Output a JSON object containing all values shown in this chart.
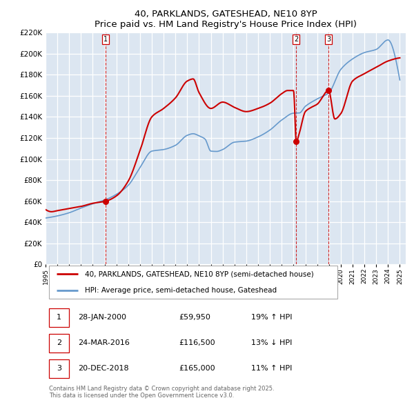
{
  "title": "40, PARKLANDS, GATESHEAD, NE10 8YP",
  "subtitle": "Price paid vs. HM Land Registry's House Price Index (HPI)",
  "legend_line1": "40, PARKLANDS, GATESHEAD, NE10 8YP (semi-detached house)",
  "legend_line2": "HPI: Average price, semi-detached house, Gateshead",
  "footnote": "Contains HM Land Registry data © Crown copyright and database right 2025.\nThis data is licensed under the Open Government Licence v3.0.",
  "sale_color": "#cc0000",
  "hpi_color": "#6699cc",
  "plot_bg_color": "#dce6f1",
  "ylim": [
    0,
    220000
  ],
  "yticks": [
    0,
    20000,
    40000,
    60000,
    80000,
    100000,
    120000,
    140000,
    160000,
    180000,
    200000,
    220000
  ],
  "xlim_start": 1995.0,
  "xlim_end": 2025.5,
  "sales": [
    {
      "date": 2000.08,
      "price": 59950,
      "label": "1"
    },
    {
      "date": 2016.23,
      "price": 116500,
      "label": "2"
    },
    {
      "date": 2018.97,
      "price": 165000,
      "label": "3"
    }
  ],
  "vlines": [
    {
      "x": 2000.08,
      "label": "1"
    },
    {
      "x": 2016.23,
      "label": "2"
    },
    {
      "x": 2018.97,
      "label": "3"
    }
  ],
  "table": [
    {
      "num": "1",
      "date": "28-JAN-2000",
      "price": "£59,950",
      "pct": "19% ↑ HPI"
    },
    {
      "num": "2",
      "date": "24-MAR-2016",
      "price": "£116,500",
      "pct": "13% ↓ HPI"
    },
    {
      "num": "3",
      "date": "20-DEC-2018",
      "price": "£165,000",
      "pct": "11% ↑ HPI"
    }
  ],
  "hpi_anchors_x": [
    1995.0,
    1996.0,
    1997.0,
    1998.0,
    1999.0,
    2000.0,
    2001.0,
    2002.0,
    2003.0,
    2004.0,
    2005.0,
    2006.0,
    2007.0,
    2007.5,
    2008.0,
    2008.5,
    2009.0,
    2009.5,
    2010.0,
    2011.0,
    2012.0,
    2013.0,
    2014.0,
    2015.0,
    2016.0,
    2016.5,
    2017.0,
    2018.0,
    2019.0,
    2020.0,
    2021.0,
    2022.0,
    2023.0,
    2024.0,
    2025.0
  ],
  "hpi_anchors_y": [
    44000,
    46000,
    49000,
    53500,
    57500,
    61000,
    66500,
    75000,
    92000,
    107500,
    109000,
    113000,
    122500,
    124000,
    122000,
    119000,
    107500,
    107200,
    109000,
    116000,
    117000,
    121000,
    127500,
    137000,
    143500,
    143700,
    150000,
    157000,
    163000,
    185000,
    195000,
    201000,
    204000,
    213000,
    175000
  ],
  "sale_anchors_x": [
    1995.0,
    1995.5,
    1996.0,
    1997.0,
    1998.0,
    1999.0,
    2000.08,
    2001.0,
    2002.0,
    2003.0,
    2004.0,
    2005.0,
    2006.0,
    2007.0,
    2007.5,
    2008.0,
    2009.0,
    2010.0,
    2011.0,
    2012.0,
    2013.0,
    2014.0,
    2015.0,
    2015.5,
    2016.0,
    2016.23,
    2016.5,
    2017.0,
    2017.5,
    2018.0,
    2018.97,
    2019.5,
    2020.0,
    2021.0,
    2022.0,
    2023.0,
    2024.0,
    2025.0
  ],
  "sale_anchors_y": [
    52000,
    50000,
    51000,
    53000,
    55000,
    58000,
    59950,
    65000,
    79000,
    108000,
    140000,
    148000,
    158000,
    174000,
    176000,
    163000,
    148000,
    154000,
    149000,
    145000,
    148000,
    153000,
    162000,
    165000,
    165000,
    116500,
    125000,
    145000,
    149000,
    152000,
    165000,
    138000,
    143000,
    174000,
    181000,
    187000,
    193000,
    196000
  ]
}
